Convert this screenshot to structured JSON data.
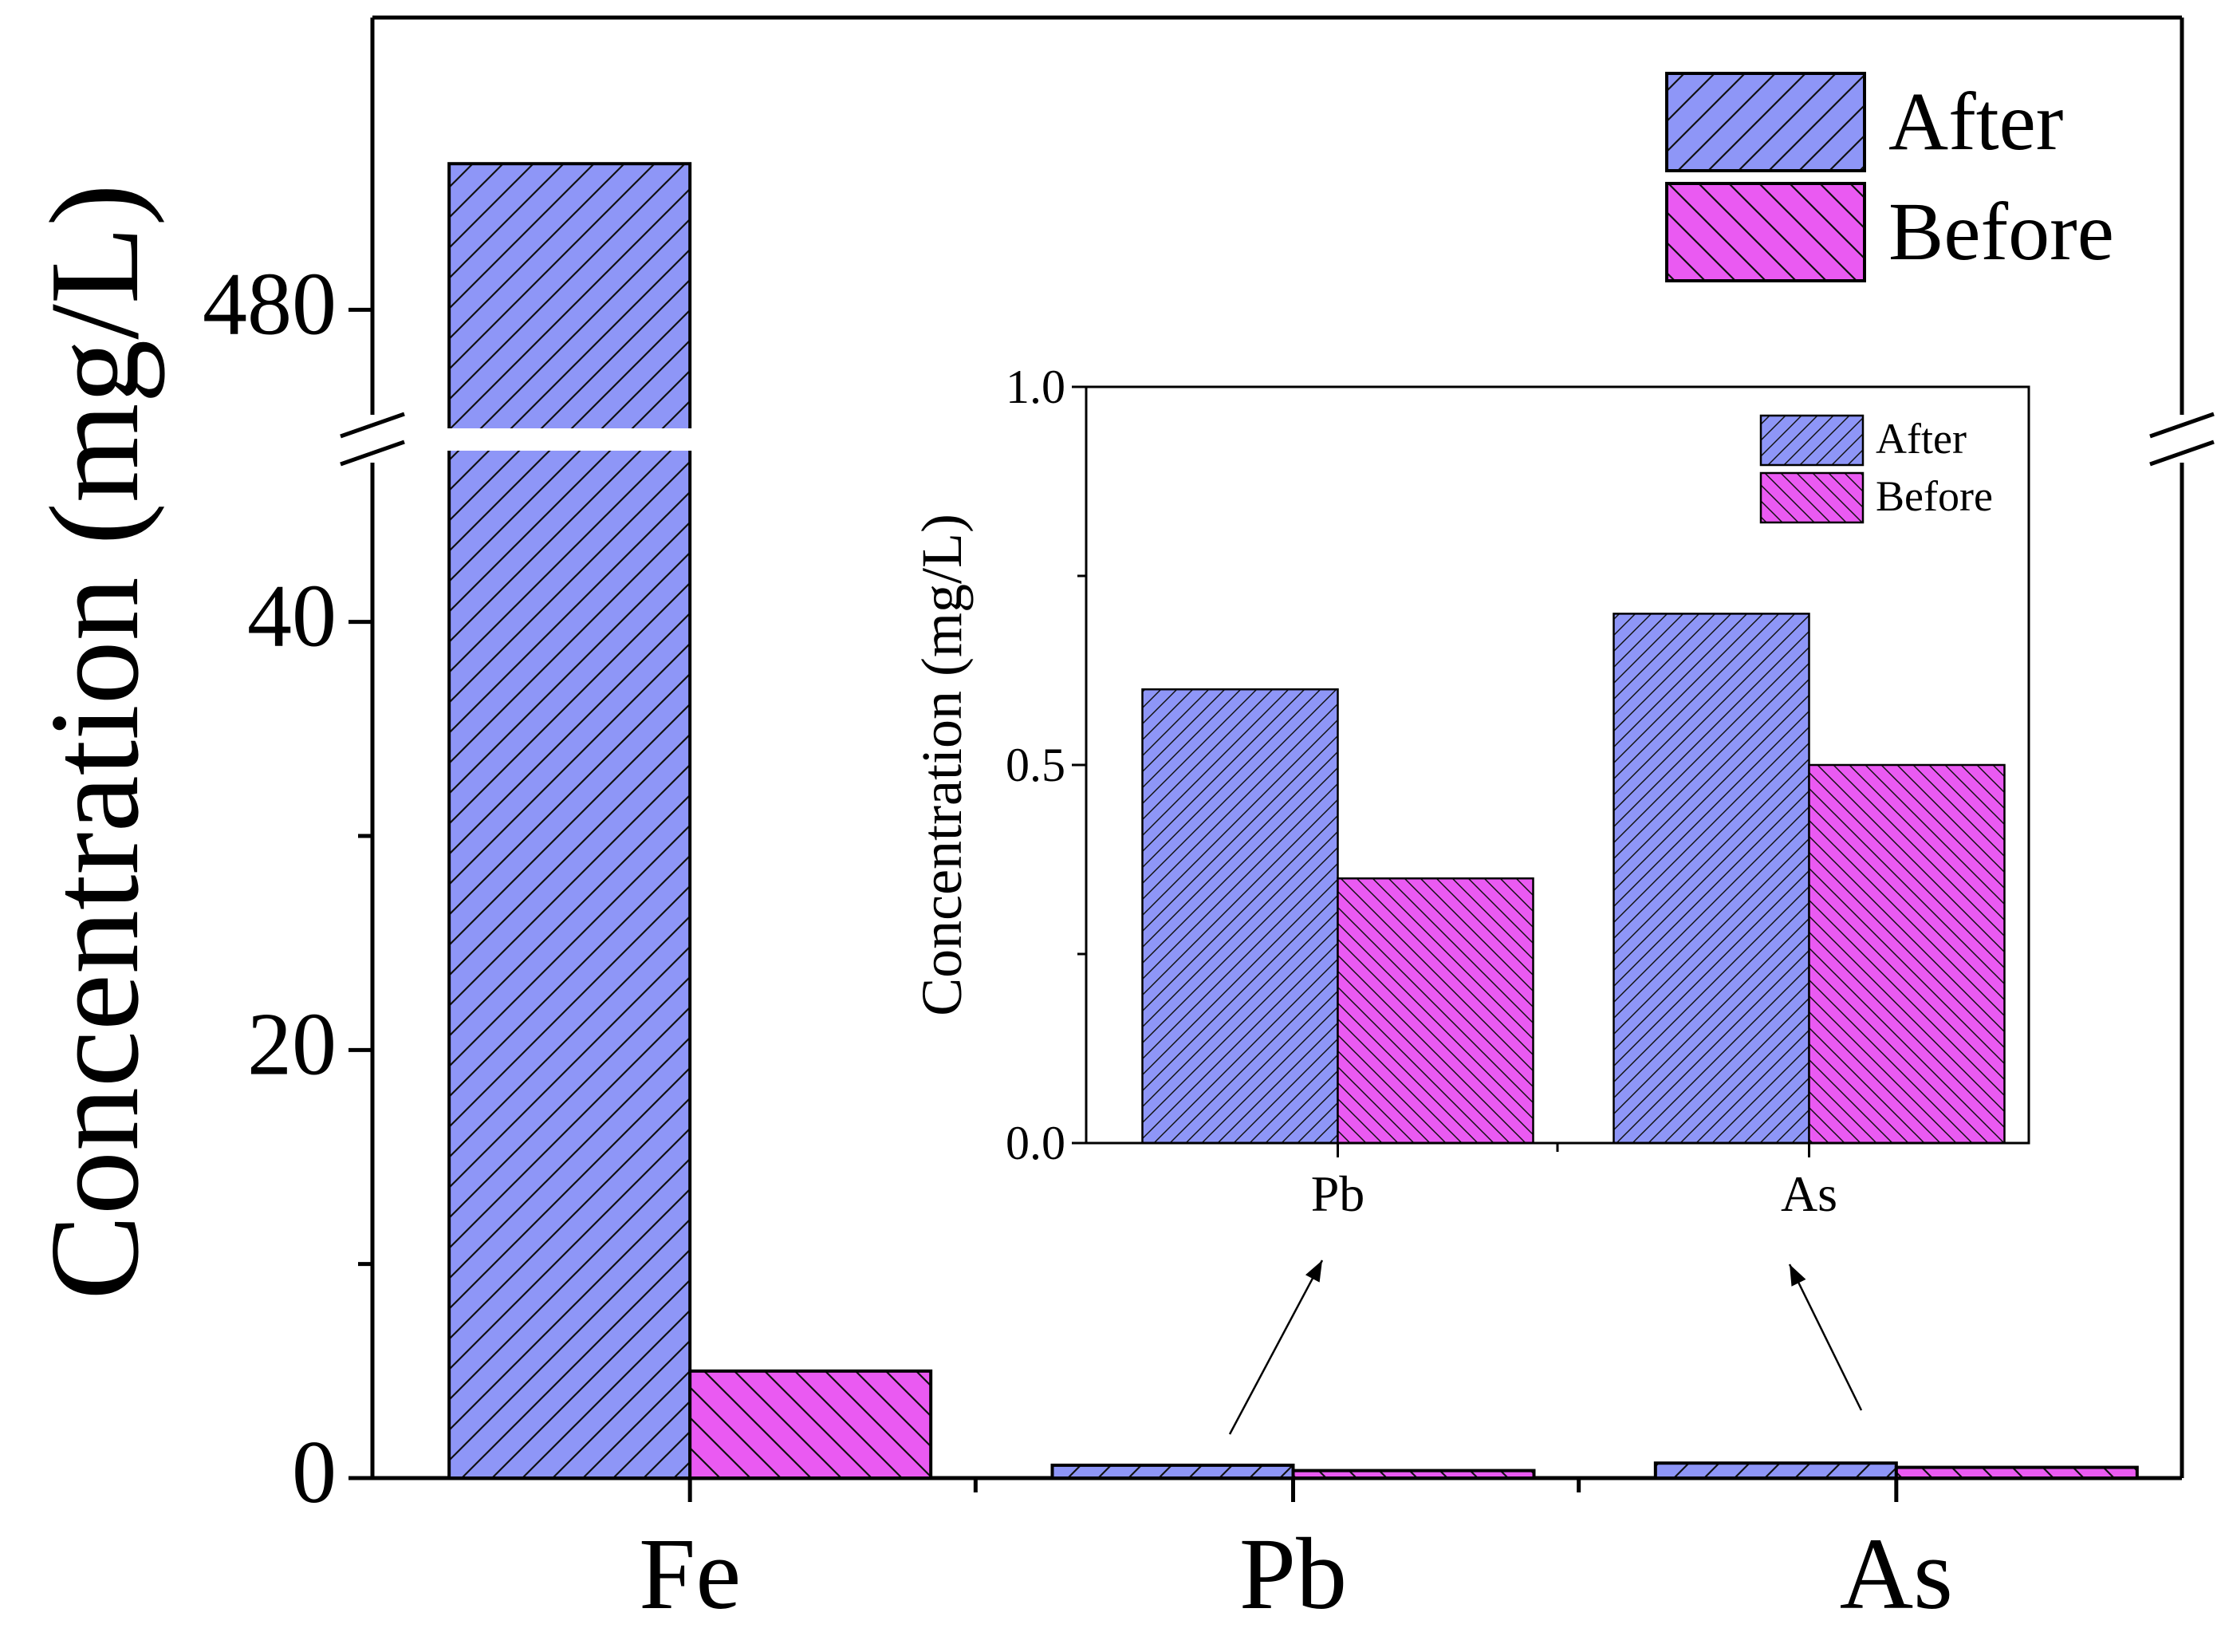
{
  "colors": {
    "after": "#8e96f7",
    "before": "#ea5af2",
    "axis": "#000000",
    "background": "#ffffff"
  },
  "chart_data": [
    {
      "id": "main",
      "type": "bar",
      "title": "",
      "xlabel": "",
      "ylabel": "Concentration (mg/L)",
      "categories": [
        "Fe",
        "Pb",
        "As"
      ],
      "series": [
        {
          "name": "After",
          "values": [
            490,
            0.6,
            0.7
          ],
          "hatch": "forward",
          "color_key": "after"
        },
        {
          "name": "Before",
          "values": [
            5,
            0.35,
            0.5
          ],
          "hatch": "backward",
          "color_key": "before"
        }
      ],
      "y_axis": {
        "broken": true,
        "lower_range": [
          0,
          48
        ],
        "upper_range": [
          472,
          500
        ],
        "lower_ticks": [
          {
            "value": 0,
            "label": "0"
          },
          {
            "value": 10,
            "label": ""
          },
          {
            "value": 20,
            "label": "20"
          },
          {
            "value": 30,
            "label": ""
          },
          {
            "value": 40,
            "label": "40"
          }
        ],
        "upper_ticks": [
          {
            "value": 480,
            "label": "480"
          }
        ]
      },
      "legend": {
        "position": "top-right",
        "entries": [
          "After",
          "Before"
        ]
      }
    },
    {
      "id": "inset",
      "type": "bar",
      "title": "",
      "xlabel": "",
      "ylabel": "Concentration (mg/L)",
      "categories": [
        "Pb",
        "As"
      ],
      "series": [
        {
          "name": "After",
          "values": [
            0.6,
            0.7
          ],
          "hatch": "forward",
          "color_key": "after"
        },
        {
          "name": "Before",
          "values": [
            0.35,
            0.5
          ],
          "hatch": "backward",
          "color_key": "before"
        }
      ],
      "ylim": [
        0,
        1
      ],
      "yticks": [
        {
          "value": 0,
          "label": "0.0"
        },
        {
          "value": 0.25,
          "label": ""
        },
        {
          "value": 0.5,
          "label": "0.5"
        },
        {
          "value": 0.75,
          "label": ""
        },
        {
          "value": 1,
          "label": "1.0"
        }
      ],
      "legend": {
        "position": "top-right",
        "entries": [
          "After",
          "Before"
        ]
      },
      "annotations": [
        {
          "type": "arrow",
          "from": "Pb",
          "to": "inset-Pb"
        },
        {
          "type": "arrow",
          "from": "As",
          "to": "inset-As"
        }
      ]
    }
  ]
}
